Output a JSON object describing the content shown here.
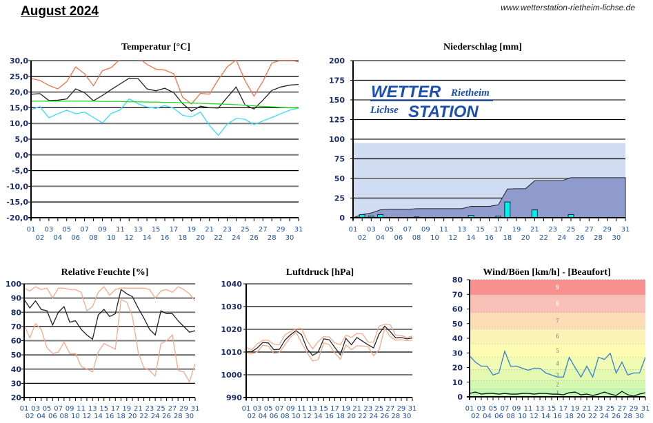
{
  "header": {
    "title": "August 2024",
    "url": "www.wetterstation-rietheim-lichse.de"
  },
  "logo": {
    "line1": "WETTER",
    "line1b": "Rietheim",
    "line2": "Lichse",
    "line2b": "STATION"
  },
  "chart_data": [
    {
      "type": "line",
      "title": "Temperatur [°C]",
      "x": [
        "01",
        "02",
        "03",
        "04",
        "05",
        "06",
        "07",
        "08",
        "09",
        "10",
        "11",
        "12",
        "13",
        "14",
        "15",
        "16",
        "17",
        "18",
        "19",
        "20",
        "21",
        "22",
        "23",
        "24",
        "25",
        "26",
        "27",
        "28",
        "29",
        "30",
        "31"
      ],
      "ylim": [
        -20,
        30
      ],
      "ytick_labels": [
        "30,0",
        "25,0",
        "20,0",
        "15,0",
        "10,0",
        "5,0",
        "0,0",
        "-5,0",
        "-10,0",
        "-15,0",
        "-20,0"
      ],
      "grid": true,
      "series": [
        {
          "color": "#f4704a",
          "values": [
            24.3,
            23.7,
            22.1,
            21.0,
            23.3,
            28.0,
            25.8,
            22.0,
            26.8,
            27.8,
            30.5,
            31.5,
            31.0,
            28.8,
            27.3,
            27.0,
            25.8,
            18.3,
            16.2,
            19.6,
            19.3,
            24.0,
            28.0,
            30.2,
            23.6,
            18.7,
            23.4,
            29.2,
            30.1,
            30.2,
            29.6
          ]
        },
        {
          "color": "#222222",
          "values": [
            19.3,
            19.5,
            17.3,
            17.4,
            17.8,
            21.0,
            19.8,
            17.2,
            18.9,
            20.8,
            22.6,
            24.4,
            24.3,
            21.0,
            20.4,
            21.2,
            19.8,
            16.3,
            13.9,
            15.5,
            15.0,
            14.9,
            18.3,
            21.6,
            15.9,
            14.6,
            17.4,
            20.5,
            21.6,
            22.2,
            22.4
          ]
        },
        {
          "color": "#33ddff",
          "values": [
            14.4,
            15.3,
            11.8,
            13.1,
            14.2,
            13.1,
            13.6,
            11.9,
            10.2,
            13.2,
            14.3,
            17.8,
            16.3,
            15.2,
            14.8,
            15.7,
            14.8,
            12.6,
            12.1,
            13.6,
            9.4,
            6.2,
            9.8,
            11.6,
            11.3,
            9.6,
            10.8,
            11.9,
            13.1,
            14.2,
            14.9
          ]
        },
        {
          "color": "#22dd22",
          "values": [
            17.1,
            17.1,
            17.1,
            17.1,
            17.1,
            17.1,
            17.1,
            17.1,
            17.0,
            17.0,
            17.0,
            16.9,
            16.9,
            16.8,
            16.8,
            16.7,
            16.7,
            16.6,
            16.5,
            16.4,
            16.3,
            16.2,
            16.1,
            16.0,
            15.8,
            15.6,
            15.4,
            15.3,
            15.1,
            15.0,
            14.9
          ]
        }
      ]
    },
    {
      "type": "bar",
      "title": "Niederschlag [mm]",
      "x": [
        "01",
        "02",
        "03",
        "04",
        "05",
        "06",
        "07",
        "08",
        "09",
        "10",
        "11",
        "12",
        "13",
        "14",
        "15",
        "16",
        "17",
        "18",
        "19",
        "20",
        "21",
        "22",
        "23",
        "24",
        "25",
        "26",
        "27",
        "28",
        "29",
        "30",
        "31"
      ],
      "ylim": [
        0,
        200
      ],
      "ytick_labels": [
        "200",
        "175",
        "150",
        "125",
        "100",
        "75",
        "50",
        "25",
        "0"
      ],
      "grid": true,
      "reference_level": 95,
      "colors": {
        "bars": "#00f0f0",
        "cumulative": "#8f9bcd",
        "reference": "#cfdcf2"
      },
      "daily": [
        0,
        4,
        2,
        4,
        0.5,
        0,
        0,
        1,
        0,
        0,
        0,
        0,
        0,
        3,
        0,
        0,
        2,
        20,
        0.5,
        0,
        10,
        0,
        0,
        0,
        4,
        0,
        0,
        0,
        0,
        0,
        0
      ],
      "cumulative": [
        0,
        4,
        6,
        10,
        10.5,
        10.5,
        10.5,
        11.5,
        11.5,
        11.5,
        11.5,
        11.5,
        11.5,
        14.5,
        14.5,
        14.5,
        16.5,
        36.5,
        37,
        37,
        47,
        47,
        47,
        47,
        51,
        51,
        51,
        51,
        51,
        51,
        51
      ]
    },
    {
      "type": "line",
      "title": "Relative Feuchte [%]",
      "x": [
        "01",
        "02",
        "03",
        "04",
        "05",
        "06",
        "07",
        "08",
        "09",
        "10",
        "11",
        "12",
        "13",
        "14",
        "15",
        "16",
        "17",
        "18",
        "19",
        "20",
        "21",
        "22",
        "23",
        "24",
        "25",
        "26",
        "27",
        "28",
        "29",
        "30",
        "31"
      ],
      "ylim": [
        20,
        100
      ],
      "ytick_labels": [
        "100",
        "90",
        "80",
        "70",
        "60",
        "50",
        "40",
        "30",
        "20"
      ],
      "grid": true,
      "series": [
        {
          "color": "#f9a888",
          "values": [
            97,
            95,
            98,
            96,
            97,
            90,
            97,
            97,
            96,
            96,
            94,
            81,
            84,
            94,
            98,
            92,
            96,
            97,
            97,
            97,
            97,
            97,
            96,
            90,
            95,
            96,
            94,
            98,
            96,
            93,
            88
          ]
        },
        {
          "color": "#222222",
          "values": [
            89,
            83,
            88,
            82,
            81,
            71,
            80,
            84,
            73,
            74,
            68,
            64,
            61,
            78,
            82,
            77,
            79,
            96,
            93,
            91,
            83,
            76,
            68,
            64,
            81,
            79,
            79,
            74,
            70,
            66,
            67
          ]
        },
        {
          "color": "#f9a888",
          "values": [
            71,
            62,
            72,
            68,
            55,
            51,
            52,
            59,
            51,
            51,
            42,
            40,
            38,
            52,
            58,
            56,
            54,
            89,
            87,
            77,
            52,
            41,
            39,
            35,
            58,
            60,
            64,
            39,
            38,
            31,
            44
          ]
        }
      ]
    },
    {
      "type": "line",
      "title": "Luftdruck [hPa]",
      "x": [
        "01",
        "02",
        "03",
        "04",
        "05",
        "06",
        "07",
        "08",
        "09",
        "10",
        "11",
        "12",
        "13",
        "14",
        "15",
        "16",
        "17",
        "18",
        "19",
        "20",
        "21",
        "22",
        "23",
        "24",
        "25",
        "26",
        "27",
        "28",
        "29",
        "30",
        "31"
      ],
      "ylim": [
        990,
        1040
      ],
      "ytick_labels": [
        "1040",
        "1030",
        "1020",
        "1010",
        "1000",
        "990"
      ],
      "grid": true,
      "series": [
        {
          "color": "#f9a888",
          "values": [
            1012,
            1011,
            1013.6,
            1015.2,
            1015.2,
            1013.4,
            1013.2,
            1017.6,
            1019,
            1020.2,
            1020.4,
            1015,
            1011.4,
            1014.6,
            1016.8,
            1016.6,
            1014,
            1013.2,
            1017.4,
            1016.4,
            1018.2,
            1018,
            1014.4,
            1014.4,
            1021.4,
            1022.2,
            1022,
            1017.3,
            1017.3,
            1016.4,
            1017
          ]
        },
        {
          "color": "#222222",
          "values": [
            1010.2,
            1010.2,
            1011.8,
            1014.2,
            1014,
            1011,
            1011.2,
            1015.2,
            1017.6,
            1019.4,
            1017.6,
            1011.4,
            1008.5,
            1010,
            1015.8,
            1015.4,
            1012,
            1008.8,
            1016,
            1013.2,
            1016.4,
            1014.8,
            1013.2,
            1011.8,
            1018,
            1021.4,
            1019,
            1016.2,
            1016.4,
            1015.8,
            1016.2
          ]
        },
        {
          "color": "#f9a888",
          "values": [
            1009.4,
            1009.2,
            1010,
            1013,
            1012.6,
            1009.4,
            1009.8,
            1013.2,
            1016.6,
            1018.6,
            1014,
            1009.6,
            1006.1,
            1006.6,
            1014,
            1013.2,
            1009.6,
            1006.8,
            1013.2,
            1011,
            1012.8,
            1012.6,
            1012.3,
            1008.4,
            1011,
            1020.6,
            1016.8,
            1015.2,
            1015.4,
            1015,
            1015.2
          ]
        }
      ]
    },
    {
      "type": "line",
      "title": "Wind/Böen [km/h] - [Beaufort]",
      "x": [
        "01",
        "02",
        "03",
        "04",
        "05",
        "06",
        "07",
        "08",
        "09",
        "10",
        "11",
        "12",
        "13",
        "14",
        "15",
        "16",
        "17",
        "18",
        "19",
        "20",
        "21",
        "22",
        "23",
        "24",
        "25",
        "26",
        "27",
        "28",
        "29",
        "30",
        "31"
      ],
      "ylim": [
        0,
        86
      ],
      "ytick_labels": [
        "80",
        "70",
        "60",
        "50",
        "40",
        "30",
        "20",
        "10",
        "0"
      ],
      "beaufort_bands": [
        {
          "label": "1",
          "from": 0,
          "to": 6,
          "color": "#c4f7b4"
        },
        {
          "label": "2",
          "from": 6,
          "to": 12,
          "color": "#d4f8b0"
        },
        {
          "label": "3",
          "from": 12,
          "to": 20,
          "color": "#e4f9b0"
        },
        {
          "label": "4",
          "from": 20,
          "to": 29,
          "color": "#f2fbb2"
        },
        {
          "label": "5",
          "from": 29,
          "to": 39,
          "color": "#fdfdb2"
        },
        {
          "label": "6",
          "from": 39,
          "to": 50,
          "color": "#fdf2b6"
        },
        {
          "label": "7",
          "from": 50,
          "to": 62,
          "color": "#fcdcb4"
        },
        {
          "label": "8",
          "from": 62,
          "to": 75,
          "color": "#f9c0b8"
        },
        {
          "label": "9",
          "from": 75,
          "to": 86,
          "color": "#f99090"
        }
      ],
      "series": [
        {
          "color": "#2f7fd8",
          "values": [
            30,
            25.5,
            22.5,
            22.5,
            16,
            17.5,
            33.5,
            22.5,
            22.5,
            21,
            19.5,
            21,
            21,
            17.5,
            16,
            14.5,
            14.5,
            29,
            21.5,
            14.5,
            22.5,
            14.5,
            29,
            27.5,
            32,
            17.5,
            25.5,
            16,
            17.5,
            17.5,
            29
          ]
        },
        {
          "color": "#111111",
          "values": [
            2.5,
            3.5,
            2,
            2.5,
            2.5,
            2,
            2.5,
            2,
            2,
            2.5,
            2.5,
            2,
            2.5,
            2.5,
            2,
            2,
            1.5,
            3,
            3.5,
            1.5,
            2,
            1,
            2,
            3.5,
            2,
            1,
            4,
            1.5,
            0.5,
            2,
            3
          ]
        }
      ]
    }
  ]
}
